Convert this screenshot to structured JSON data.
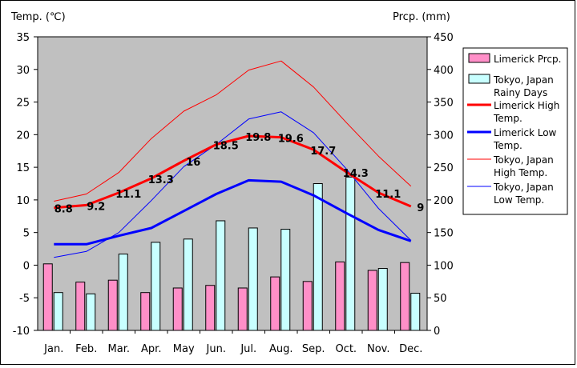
{
  "chart_data": {
    "type": "bar+line",
    "left_axis_title": "Temp. (℃)",
    "right_axis_title": "Prcp. (mm)",
    "categories": [
      "Jan.",
      "Feb.",
      "Mar.",
      "Apr.",
      "May",
      "Jun.",
      "Jul.",
      "Aug.",
      "Sep.",
      "Oct.",
      "Nov.",
      "Dec."
    ],
    "y_left": {
      "min": -10,
      "max": 35,
      "ticks": [
        -10,
        -5,
        0,
        5,
        10,
        15,
        20,
        25,
        30,
        35
      ]
    },
    "y_right": {
      "min": 0,
      "max": 450,
      "ticks": [
        0,
        50,
        100,
        150,
        200,
        250,
        300,
        350,
        400,
        450
      ]
    },
    "grid": false,
    "legend_position": "right",
    "bar_series": [
      {
        "name": "Limerick Prcp.",
        "color": "#ff8fc8",
        "axis": "right",
        "values": [
          102,
          74,
          77,
          58,
          65,
          69,
          65,
          82,
          75,
          105,
          92,
          104
        ]
      },
      {
        "name": "Tokyo, Japan\nRainy Days",
        "color": "#c8ffff",
        "axis": "right",
        "values": [
          58,
          56,
          117,
          135,
          140,
          168,
          157,
          155,
          225,
          235,
          95,
          57
        ]
      }
    ],
    "line_series": [
      {
        "name": "Limerick High\nTemp.",
        "color": "#ff0000",
        "width": 3,
        "axis": "left",
        "values": [
          8.8,
          9.2,
          11.1,
          13.3,
          16,
          18.5,
          19.8,
          19.6,
          17.7,
          14.3,
          11.1,
          9
        ],
        "labels": [
          "8.8",
          "9.2",
          "11.1",
          "13.3",
          "16",
          "18.5",
          "19.8",
          "19.6",
          "17.7",
          "14.3",
          "11.1",
          "9"
        ]
      },
      {
        "name": "Limerick Low\nTemp.",
        "color": "#0000ff",
        "width": 3,
        "axis": "left",
        "values": [
          3.2,
          3.2,
          4.5,
          5.7,
          8.3,
          10.9,
          13,
          12.8,
          10.7,
          8,
          5.4,
          3.7
        ]
      },
      {
        "name": "Tokyo, Japan\nHigh Temp.",
        "color": "#ff0000",
        "width": 1,
        "axis": "left",
        "values": [
          9.8,
          10.9,
          14.2,
          19.4,
          23.6,
          26.1,
          29.9,
          31.3,
          27.3,
          21.9,
          16.7,
          12.1
        ]
      },
      {
        "name": "Tokyo, Japan\nLow Temp.",
        "color": "#0000ff",
        "width": 1,
        "axis": "left",
        "values": [
          1.2,
          2.1,
          5,
          9.9,
          15.1,
          18.5,
          22.4,
          23.5,
          20.3,
          14.8,
          8.7,
          3.8
        ]
      }
    ]
  }
}
